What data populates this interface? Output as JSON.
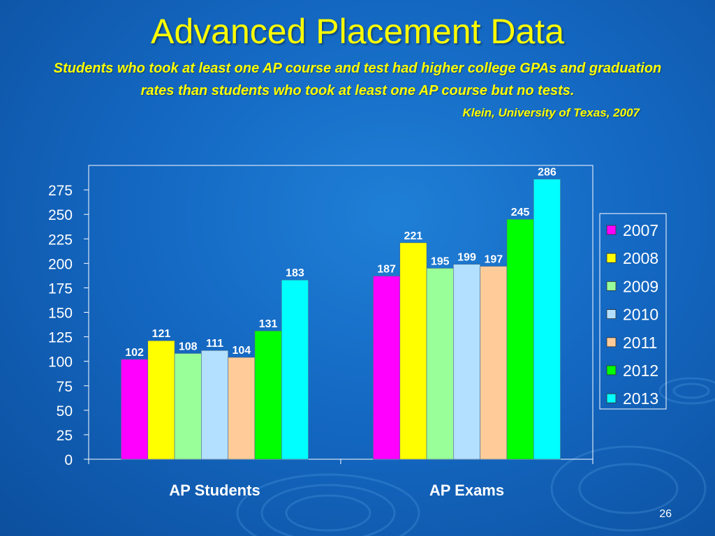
{
  "slide": {
    "title": "Advanced Placement Data",
    "subtitle": "Students who took at least one AP course and test had higher college GPAs and graduation rates than students who took at least one AP course but no tests.",
    "citation": "Klein, University of Texas, 2007",
    "page_number": "26"
  },
  "colors": {
    "background": "#1468c2",
    "title": "#ffff00",
    "text": "#ffffff"
  },
  "chart_data": {
    "type": "bar",
    "categories": [
      "AP Students",
      "AP Exams"
    ],
    "series": [
      {
        "name": "2007",
        "color": "#ff00ff",
        "values": [
          102,
          187
        ]
      },
      {
        "name": "2008",
        "color": "#ffff00",
        "values": [
          121,
          221
        ]
      },
      {
        "name": "2009",
        "color": "#99ff99",
        "values": [
          108,
          195
        ]
      },
      {
        "name": "2010",
        "color": "#b3e0ff",
        "values": [
          111,
          199
        ]
      },
      {
        "name": "2011",
        "color": "#ffcc99",
        "values": [
          104,
          197
        ]
      },
      {
        "name": "2012",
        "color": "#00ff00",
        "values": [
          131,
          245
        ]
      },
      {
        "name": "2013",
        "color": "#00ffff",
        "values": [
          183,
          286
        ]
      }
    ],
    "yticks": [
      0,
      25,
      50,
      75,
      100,
      125,
      150,
      175,
      200,
      225,
      250,
      275
    ],
    "ylim": [
      0,
      300
    ],
    "grid": false,
    "legend": "right",
    "data_labels": true
  }
}
